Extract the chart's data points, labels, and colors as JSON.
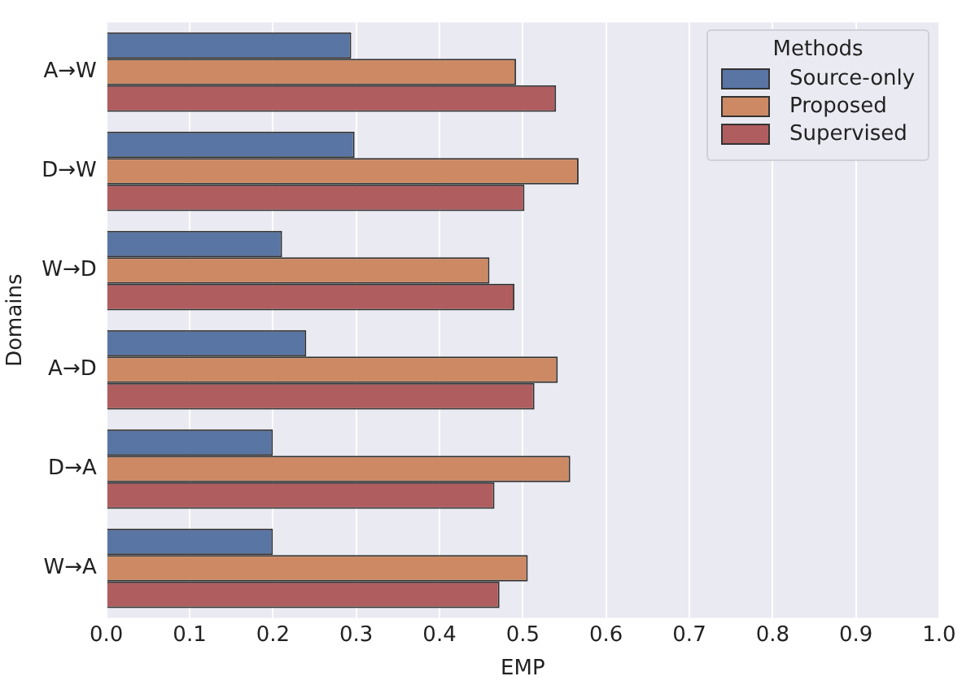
{
  "chart_data": {
    "type": "bar",
    "orientation": "horizontal",
    "xlabel": "EMP",
    "ylabel": "Domains",
    "legend_title": "Methods",
    "legend": "top right",
    "grid": "x",
    "categories": [
      "A→W",
      "D→W",
      "W→D",
      "A→D",
      "D→A",
      "W→A"
    ],
    "xlim": [
      0,
      1
    ],
    "xticks": [
      {
        "value": 0,
        "label": "0.0"
      },
      0.1,
      0.2,
      0.3,
      0.4,
      0.5,
      0.6,
      0.7,
      0.8,
      0.9,
      {
        "value": 1,
        "label": "1.0"
      }
    ],
    "series": [
      {
        "name": "Source-only",
        "color": "#5975a4",
        "values": [
          0.294,
          0.298,
          0.211,
          0.24,
          0.2,
          0.2
        ]
      },
      {
        "name": "Proposed",
        "color": "#cc8963",
        "values": [
          0.492,
          0.567,
          0.46,
          0.542,
          0.557,
          0.506
        ]
      },
      {
        "name": "Supervised",
        "color": "#b05d5f",
        "values": [
          0.54,
          0.502,
          0.49,
          0.514,
          0.466,
          0.472
        ]
      }
    ]
  }
}
